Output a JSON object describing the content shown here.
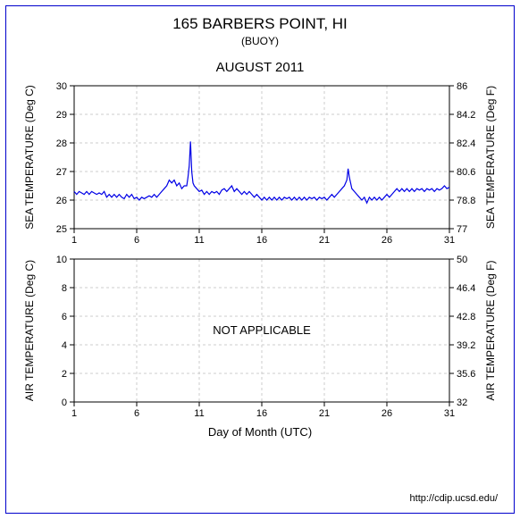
{
  "header": {
    "title": "165 BARBERS POINT, HI",
    "subtitle": "(BUOY)",
    "period": "AUGUST 2011"
  },
  "sea_chart": {
    "type": "line",
    "ylabel_left": "SEA TEMPERATURE (Deg C)",
    "ylabel_right": "SEA TEMPERATURE (Deg F)",
    "xlim": [
      1,
      31
    ],
    "ylim_left": [
      25,
      30
    ],
    "ylim_right": [
      77,
      86
    ],
    "xticks": [
      1,
      6,
      11,
      16,
      21,
      26,
      31
    ],
    "yticks_left": [
      25,
      26,
      27,
      28,
      29,
      30
    ],
    "yticks_right": [
      77,
      78.8,
      80.6,
      82.4,
      84.2,
      86
    ],
    "line_color": "#0000e6",
    "grid_color": "#cccccc",
    "border_color": "#000000",
    "background_color": "#ffffff",
    "label_fontsize": 12,
    "tick_fontsize": 11,
    "data": [
      [
        1,
        26.3
      ],
      [
        1.2,
        26.2
      ],
      [
        1.4,
        26.3
      ],
      [
        1.6,
        26.25
      ],
      [
        1.8,
        26.2
      ],
      [
        2,
        26.3
      ],
      [
        2.2,
        26.2
      ],
      [
        2.4,
        26.3
      ],
      [
        2.6,
        26.25
      ],
      [
        2.8,
        26.2
      ],
      [
        3,
        26.25
      ],
      [
        3.2,
        26.2
      ],
      [
        3.4,
        26.3
      ],
      [
        3.6,
        26.1
      ],
      [
        3.8,
        26.2
      ],
      [
        4,
        26.1
      ],
      [
        4.2,
        26.2
      ],
      [
        4.4,
        26.1
      ],
      [
        4.6,
        26.2
      ],
      [
        4.8,
        26.1
      ],
      [
        5,
        26.05
      ],
      [
        5.2,
        26.2
      ],
      [
        5.4,
        26.1
      ],
      [
        5.6,
        26.2
      ],
      [
        5.8,
        26.05
      ],
      [
        6,
        26.1
      ],
      [
        6.2,
        26.0
      ],
      [
        6.4,
        26.1
      ],
      [
        6.6,
        26.05
      ],
      [
        6.8,
        26.1
      ],
      [
        7,
        26.15
      ],
      [
        7.2,
        26.1
      ],
      [
        7.4,
        26.2
      ],
      [
        7.6,
        26.1
      ],
      [
        7.8,
        26.2
      ],
      [
        8,
        26.3
      ],
      [
        8.2,
        26.4
      ],
      [
        8.4,
        26.5
      ],
      [
        8.6,
        26.7
      ],
      [
        8.8,
        26.6
      ],
      [
        9,
        26.7
      ],
      [
        9.2,
        26.5
      ],
      [
        9.4,
        26.6
      ],
      [
        9.6,
        26.4
      ],
      [
        9.8,
        26.5
      ],
      [
        10,
        26.5
      ],
      [
        10.1,
        26.8
      ],
      [
        10.2,
        27.2
      ],
      [
        10.3,
        28.05
      ],
      [
        10.4,
        27.0
      ],
      [
        10.5,
        26.6
      ],
      [
        10.6,
        26.5
      ],
      [
        10.8,
        26.4
      ],
      [
        11,
        26.3
      ],
      [
        11.2,
        26.35
      ],
      [
        11.4,
        26.2
      ],
      [
        11.6,
        26.3
      ],
      [
        11.8,
        26.2
      ],
      [
        12,
        26.3
      ],
      [
        12.2,
        26.25
      ],
      [
        12.4,
        26.3
      ],
      [
        12.6,
        26.2
      ],
      [
        12.8,
        26.35
      ],
      [
        13,
        26.4
      ],
      [
        13.2,
        26.3
      ],
      [
        13.4,
        26.4
      ],
      [
        13.6,
        26.5
      ],
      [
        13.8,
        26.3
      ],
      [
        14,
        26.4
      ],
      [
        14.2,
        26.3
      ],
      [
        14.4,
        26.2
      ],
      [
        14.6,
        26.3
      ],
      [
        14.8,
        26.2
      ],
      [
        15,
        26.3
      ],
      [
        15.2,
        26.2
      ],
      [
        15.4,
        26.1
      ],
      [
        15.6,
        26.2
      ],
      [
        15.8,
        26.1
      ],
      [
        16,
        26.0
      ],
      [
        16.2,
        26.1
      ],
      [
        16.4,
        26.0
      ],
      [
        16.6,
        26.1
      ],
      [
        16.8,
        26.0
      ],
      [
        17,
        26.1
      ],
      [
        17.2,
        26.0
      ],
      [
        17.4,
        26.1
      ],
      [
        17.6,
        26.0
      ],
      [
        17.8,
        26.1
      ],
      [
        18,
        26.05
      ],
      [
        18.2,
        26.1
      ],
      [
        18.4,
        26.0
      ],
      [
        18.6,
        26.1
      ],
      [
        18.8,
        26.0
      ],
      [
        19,
        26.1
      ],
      [
        19.2,
        26.0
      ],
      [
        19.4,
        26.1
      ],
      [
        19.6,
        26.0
      ],
      [
        19.8,
        26.1
      ],
      [
        20,
        26.05
      ],
      [
        20.2,
        26.1
      ],
      [
        20.4,
        26.0
      ],
      [
        20.6,
        26.1
      ],
      [
        20.8,
        26.05
      ],
      [
        21,
        26.1
      ],
      [
        21.2,
        26.0
      ],
      [
        21.4,
        26.1
      ],
      [
        21.6,
        26.2
      ],
      [
        21.8,
        26.1
      ],
      [
        22,
        26.2
      ],
      [
        22.2,
        26.3
      ],
      [
        22.4,
        26.4
      ],
      [
        22.6,
        26.5
      ],
      [
        22.8,
        26.7
      ],
      [
        22.9,
        27.1
      ],
      [
        23,
        26.8
      ],
      [
        23.1,
        26.6
      ],
      [
        23.2,
        26.4
      ],
      [
        23.4,
        26.3
      ],
      [
        23.6,
        26.2
      ],
      [
        23.8,
        26.1
      ],
      [
        24,
        26.0
      ],
      [
        24.2,
        26.1
      ],
      [
        24.4,
        25.9
      ],
      [
        24.6,
        26.1
      ],
      [
        24.8,
        26.0
      ],
      [
        25,
        26.1
      ],
      [
        25.2,
        26.0
      ],
      [
        25.4,
        26.1
      ],
      [
        25.6,
        26.0
      ],
      [
        25.8,
        26.1
      ],
      [
        26,
        26.2
      ],
      [
        26.2,
        26.1
      ],
      [
        26.4,
        26.2
      ],
      [
        26.6,
        26.3
      ],
      [
        26.8,
        26.4
      ],
      [
        27,
        26.3
      ],
      [
        27.2,
        26.4
      ],
      [
        27.4,
        26.3
      ],
      [
        27.6,
        26.4
      ],
      [
        27.8,
        26.3
      ],
      [
        28,
        26.4
      ],
      [
        28.2,
        26.3
      ],
      [
        28.4,
        26.4
      ],
      [
        28.6,
        26.35
      ],
      [
        28.8,
        26.4
      ],
      [
        29,
        26.3
      ],
      [
        29.2,
        26.4
      ],
      [
        29.4,
        26.35
      ],
      [
        29.6,
        26.4
      ],
      [
        29.8,
        26.3
      ],
      [
        30,
        26.4
      ],
      [
        30.2,
        26.35
      ],
      [
        30.4,
        26.4
      ],
      [
        30.6,
        26.5
      ],
      [
        30.8,
        26.4
      ],
      [
        31,
        26.45
      ]
    ]
  },
  "air_chart": {
    "type": "line",
    "ylabel_left": "AIR TEMPERATURE (Deg C)",
    "ylabel_right": "AIR TEMPERATURE (Deg F)",
    "xlim": [
      1,
      31
    ],
    "ylim_left": [
      0,
      10
    ],
    "ylim_right": [
      32,
      50
    ],
    "xticks": [
      1,
      6,
      11,
      16,
      21,
      26,
      31
    ],
    "yticks_left": [
      0,
      2,
      4,
      6,
      8,
      10
    ],
    "yticks_right": [
      32,
      35.6,
      39.2,
      42.8,
      46.4,
      50
    ],
    "overlay_text": "NOT APPLICABLE",
    "line_color": "#0000e6",
    "grid_color": "#cccccc",
    "border_color": "#000000",
    "background_color": "#ffffff",
    "label_fontsize": 12,
    "tick_fontsize": 11,
    "data": []
  },
  "xlabel": "Day of Month (UTC)",
  "footer": "http://cdip.ucsd.edu/"
}
